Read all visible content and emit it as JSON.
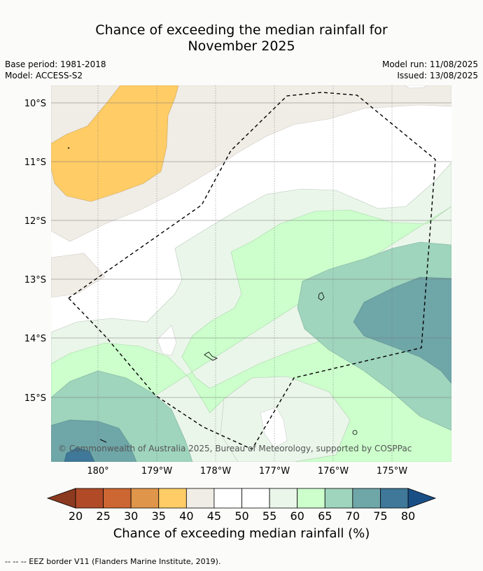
{
  "title_line1": "Chance of exceeding the median rainfall for",
  "title_line2": "November 2025",
  "base_period": "Base period: 1981-2018",
  "model": "Model: ACCESS-S2",
  "model_run": "Model run: 11/08/2025",
  "issued": "Issued: 13/08/2025",
  "lat_labels": [
    "10°S",
    "11°S",
    "12°S",
    "13°S",
    "14°S",
    "15°S"
  ],
  "lon_labels": [
    "180°",
    "179°W",
    "178°W",
    "177°W",
    "176°W",
    "175°W"
  ],
  "copyright": "© Commonwealth of Australia 2025, Bureau of Meteorology, supported by COSPPac",
  "colorbar": {
    "ticks": [
      "20",
      "25",
      "30",
      "35",
      "40",
      "45",
      "50",
      "55",
      "60",
      "65",
      "70",
      "75",
      "80"
    ],
    "colors": {
      "below20": "#8c3a20",
      "20-25": "#b04a27",
      "25-30": "#cc6633",
      "30-35": "#e0964a",
      "35-40": "#ffcc66",
      "40-45": "#f0ece6",
      "45-50": "#ffffff",
      "50-55": "#ffffff",
      "55-60": "#eaf6ea",
      "60-65": "#ccffcc",
      "65-70": "#9fd4bd",
      "70-75": "#6fa6a8",
      "75-80": "#3f7898",
      "above80": "#1a4f86"
    },
    "label": "Chance of exceeding median rainfall (%)"
  },
  "legend_footnote": "--  --  -- EEZ border V11 (Flanders Marine Institute, 2019)."
}
